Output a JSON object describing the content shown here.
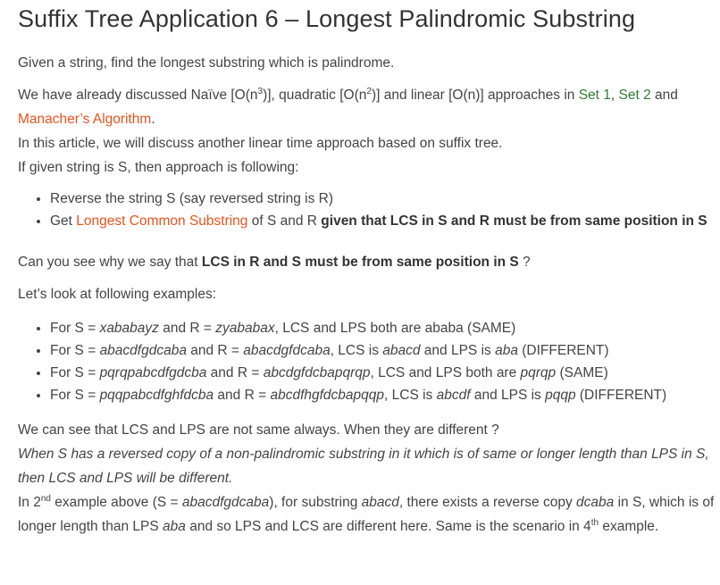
{
  "title": "Suffix Tree Application 6 – Longest Palindromic Substring",
  "intro": "Given a string, find the longest substring which is palindrome.",
  "para2": {
    "t1": "We have already discussed Naïve [O(n",
    "sup1": "3",
    "t2": ")], quadratic [O(n",
    "sup2": "2",
    "t3": ")] and linear [O(n)] approaches in ",
    "link_set1": "Set 1",
    "comma": ", ",
    "link_set2": "Set 2",
    "and": " and",
    "link_manacher": "Manacher’s Algorithm",
    "period": "."
  },
  "line_article": "In this article, we will discuss another linear time approach based on suffix tree.",
  "line_approach": "If given string is S, then approach is following:",
  "steps": {
    "s1": "Reverse the string S (say reversed string is R)",
    "s2_pre": "Get ",
    "s2_link": "Longest Common Substring",
    "s2_mid": " of S and R ",
    "s2_bold": "given that LCS in S and R must be from same position in S"
  },
  "question": {
    "pre": "Can you see why we say that ",
    "bold": "LCS in R and S must be from same position in S",
    "post": " ?"
  },
  "examples_intro": "Let’s look at following examples:",
  "examples": {
    "e1": {
      "a": "For S = ",
      "s": "xababayz",
      "b": " and R = ",
      "r": "zyababax",
      "c": ", LCS and LPS both are ababa (SAME)"
    },
    "e2": {
      "a": "For S = ",
      "s": "abacdfgdcaba",
      "b": " and R = ",
      "r": "abacdgfdcaba",
      "c": ", LCS is ",
      "lcs": "abacd",
      "d": " and LPS is ",
      "lps": "aba",
      "e": " (DIFFERENT)"
    },
    "e3": {
      "a": "For S = ",
      "s": "pqrqpabcdfgdcba",
      "b": " and R = ",
      "r": "abcdgfdcbapqrqp",
      "c": ", LCS and LPS both are ",
      "lps": "pqrqp",
      "e": " (SAME)"
    },
    "e4": {
      "a": "For S = ",
      "s": "pqqpabcdfghfdcba",
      "b": " and R = ",
      "r": "abcdfhgfdcbapqqp",
      "c": ", LCS is ",
      "lcs": "abcdf",
      "d": " and LPS is ",
      "lps": "pqqp",
      "e": " (DIFFERENT)"
    }
  },
  "conclusion": {
    "line1": "We can see that LCS and LPS are not same always. When they are different ?",
    "italic": "When S has a reversed copy of a non-palindromic substring in it which is of same or longer length than LPS in S, then LCS and LPS will be different.",
    "p1": "In 2",
    "sup1": "nd",
    "p2": " example above (S = ",
    "s": "abacdfgdcaba",
    "p3": "), for substring ",
    "sub": "abacd",
    "p4": ", there exists a reverse copy ",
    "rev": "dcaba",
    "p5": " in S, which is of longer length than LPS ",
    "lps": "aba",
    "p6": " and so LPS and LCS are different here. Same is the scenario in 4",
    "sup2": "th",
    "p7": " example."
  },
  "colors": {
    "link_green": "#2e7d32",
    "link_orange": "#e8531e",
    "text": "#444444"
  }
}
